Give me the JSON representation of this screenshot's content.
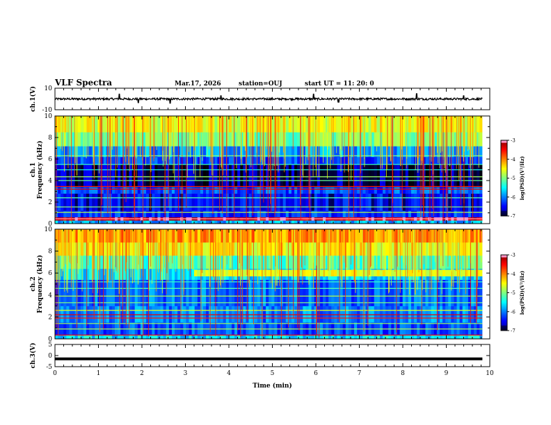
{
  "header": {
    "title": "VLF Spectra",
    "date": "Mar.17, 2026",
    "station": "station=OUJ",
    "start": "start  UT =   11: 20: 0"
  },
  "chart_data": [
    {
      "type": "line",
      "id": "ch1-waveform",
      "ylabel": "ch.1(V)",
      "ylim": [
        -10,
        10
      ],
      "yticks": [
        "10",
        "-10"
      ],
      "xlim": [
        0,
        10
      ],
      "baseline": 0,
      "noise_amplitude": 1.0,
      "spikes": [
        {
          "x": 1.48,
          "y": 4.5
        },
        {
          "x": 1.92,
          "y": -3.5
        },
        {
          "x": 2.65,
          "y": -4.0
        },
        {
          "x": 3.82,
          "y": 3.0
        },
        {
          "x": 5.95,
          "y": 4.5
        },
        {
          "x": 6.52,
          "y": -3.0
        },
        {
          "x": 8.32,
          "y": 5.0
        },
        {
          "x": 9.4,
          "y": 3.0
        }
      ],
      "data_end_x": 9.83
    },
    {
      "type": "heatmap",
      "id": "ch1-spectrogram",
      "ylabel": "ch.1\nFrequency (kHz)",
      "ylim": [
        0,
        10
      ],
      "yticks": [
        "0",
        "2",
        "4",
        "6",
        "8",
        "10"
      ],
      "xlim": [
        0,
        10
      ],
      "data_end_x": 9.83,
      "colorscale": {
        "min": -7,
        "max": -3,
        "ticks": [
          "-3",
          "-4",
          "-5",
          "-6",
          "-7"
        ],
        "label": "log(PSD)(V²/Hz)"
      },
      "bands": [
        {
          "f0": 0.0,
          "f1": 0.3,
          "v": -5.8
        },
        {
          "f0": 0.3,
          "f1": 0.6,
          "v": -3.3
        },
        {
          "f0": 0.6,
          "f1": 1.2,
          "v": -6.3
        },
        {
          "f0": 1.2,
          "f1": 2.8,
          "v": -6.5
        },
        {
          "f0": 2.8,
          "f1": 3.4,
          "v": -6.2
        },
        {
          "f0": 3.4,
          "f1": 5.5,
          "v": -6.8
        },
        {
          "f0": 5.5,
          "f1": 6.2,
          "v": -6.3
        },
        {
          "f0": 6.2,
          "f1": 7.2,
          "v": -5.9
        },
        {
          "f0": 7.2,
          "f1": 8.5,
          "v": -5.0
        },
        {
          "f0": 8.5,
          "f1": 10.0,
          "v": -4.6
        }
      ],
      "lines": [
        {
          "f": 0.45,
          "v": -3.1
        },
        {
          "f": 1.05,
          "v": -4.8
        },
        {
          "f": 1.55,
          "v": -5.0
        },
        {
          "f": 2.4,
          "v": -5.2
        },
        {
          "f": 3.2,
          "v": -3.4
        },
        {
          "f": 3.45,
          "v": -3.6
        },
        {
          "f": 4.0,
          "v": -5.1
        },
        {
          "f": 4.35,
          "v": -4.9
        },
        {
          "f": 5.0,
          "v": -5.4
        },
        {
          "f": 5.5,
          "v": -5.3
        },
        {
          "f": 6.3,
          "v": -5.0
        }
      ]
    },
    {
      "type": "heatmap",
      "id": "ch2-spectrogram",
      "ylabel": "ch.2\nFrequency (kHz)",
      "ylim": [
        0,
        10
      ],
      "yticks": [
        "0",
        "2",
        "4",
        "6",
        "8",
        "10"
      ],
      "xlim": [
        0,
        10
      ],
      "data_end_x": 9.83,
      "colorscale": {
        "min": -7,
        "max": -3,
        "ticks": [
          "-3",
          "-4",
          "-5",
          "-6",
          "-7"
        ],
        "label": "log(PSD)(V²/Hz)"
      },
      "bands": [
        {
          "f0": 0.0,
          "f1": 0.4,
          "v": -5.6
        },
        {
          "f0": 0.4,
          "f1": 1.5,
          "v": -6.2
        },
        {
          "f0": 1.5,
          "f1": 3.0,
          "v": -6.0
        },
        {
          "f0": 3.0,
          "f1": 5.4,
          "v": -6.1
        },
        {
          "f0": 5.4,
          "f1": 6.4,
          "v": -5.6
        },
        {
          "f0": 6.4,
          "f1": 7.6,
          "v": -5.2
        },
        {
          "f0": 7.6,
          "f1": 8.8,
          "v": -4.5
        },
        {
          "f0": 8.8,
          "f1": 10.0,
          "v": -4.1
        }
      ],
      "lines": [
        {
          "f": 0.35,
          "v": -3.5
        },
        {
          "f": 0.9,
          "v": -4.8
        },
        {
          "f": 1.4,
          "v": -4.9
        },
        {
          "f": 1.9,
          "v": -3.6
        },
        {
          "f": 2.2,
          "v": -3.4
        },
        {
          "f": 2.6,
          "v": -4.6
        },
        {
          "f": 3.3,
          "v": -5.0
        },
        {
          "f": 3.9,
          "v": -4.8
        },
        {
          "f": 4.6,
          "v": -5.2
        },
        {
          "f": 5.2,
          "v": -5.3
        }
      ],
      "enhanced_band": {
        "x0": 3.2,
        "x1": 9.83,
        "f0": 5.7,
        "f1": 6.3,
        "v": -4.6
      }
    },
    {
      "type": "line",
      "id": "ch3-waveform",
      "ylabel": "ch.3(V)",
      "ylim": [
        -5,
        5
      ],
      "yticks": [
        "5",
        "0",
        "-5"
      ],
      "xlim": [
        0,
        10
      ],
      "baseline": -1.5,
      "noise_amplitude": 0.0,
      "data_end_x": 9.83,
      "xlabel": "Time (min)",
      "xticks": [
        "0",
        "1",
        "2",
        "3",
        "4",
        "5",
        "6",
        "7",
        "8",
        "9",
        "10"
      ]
    }
  ]
}
